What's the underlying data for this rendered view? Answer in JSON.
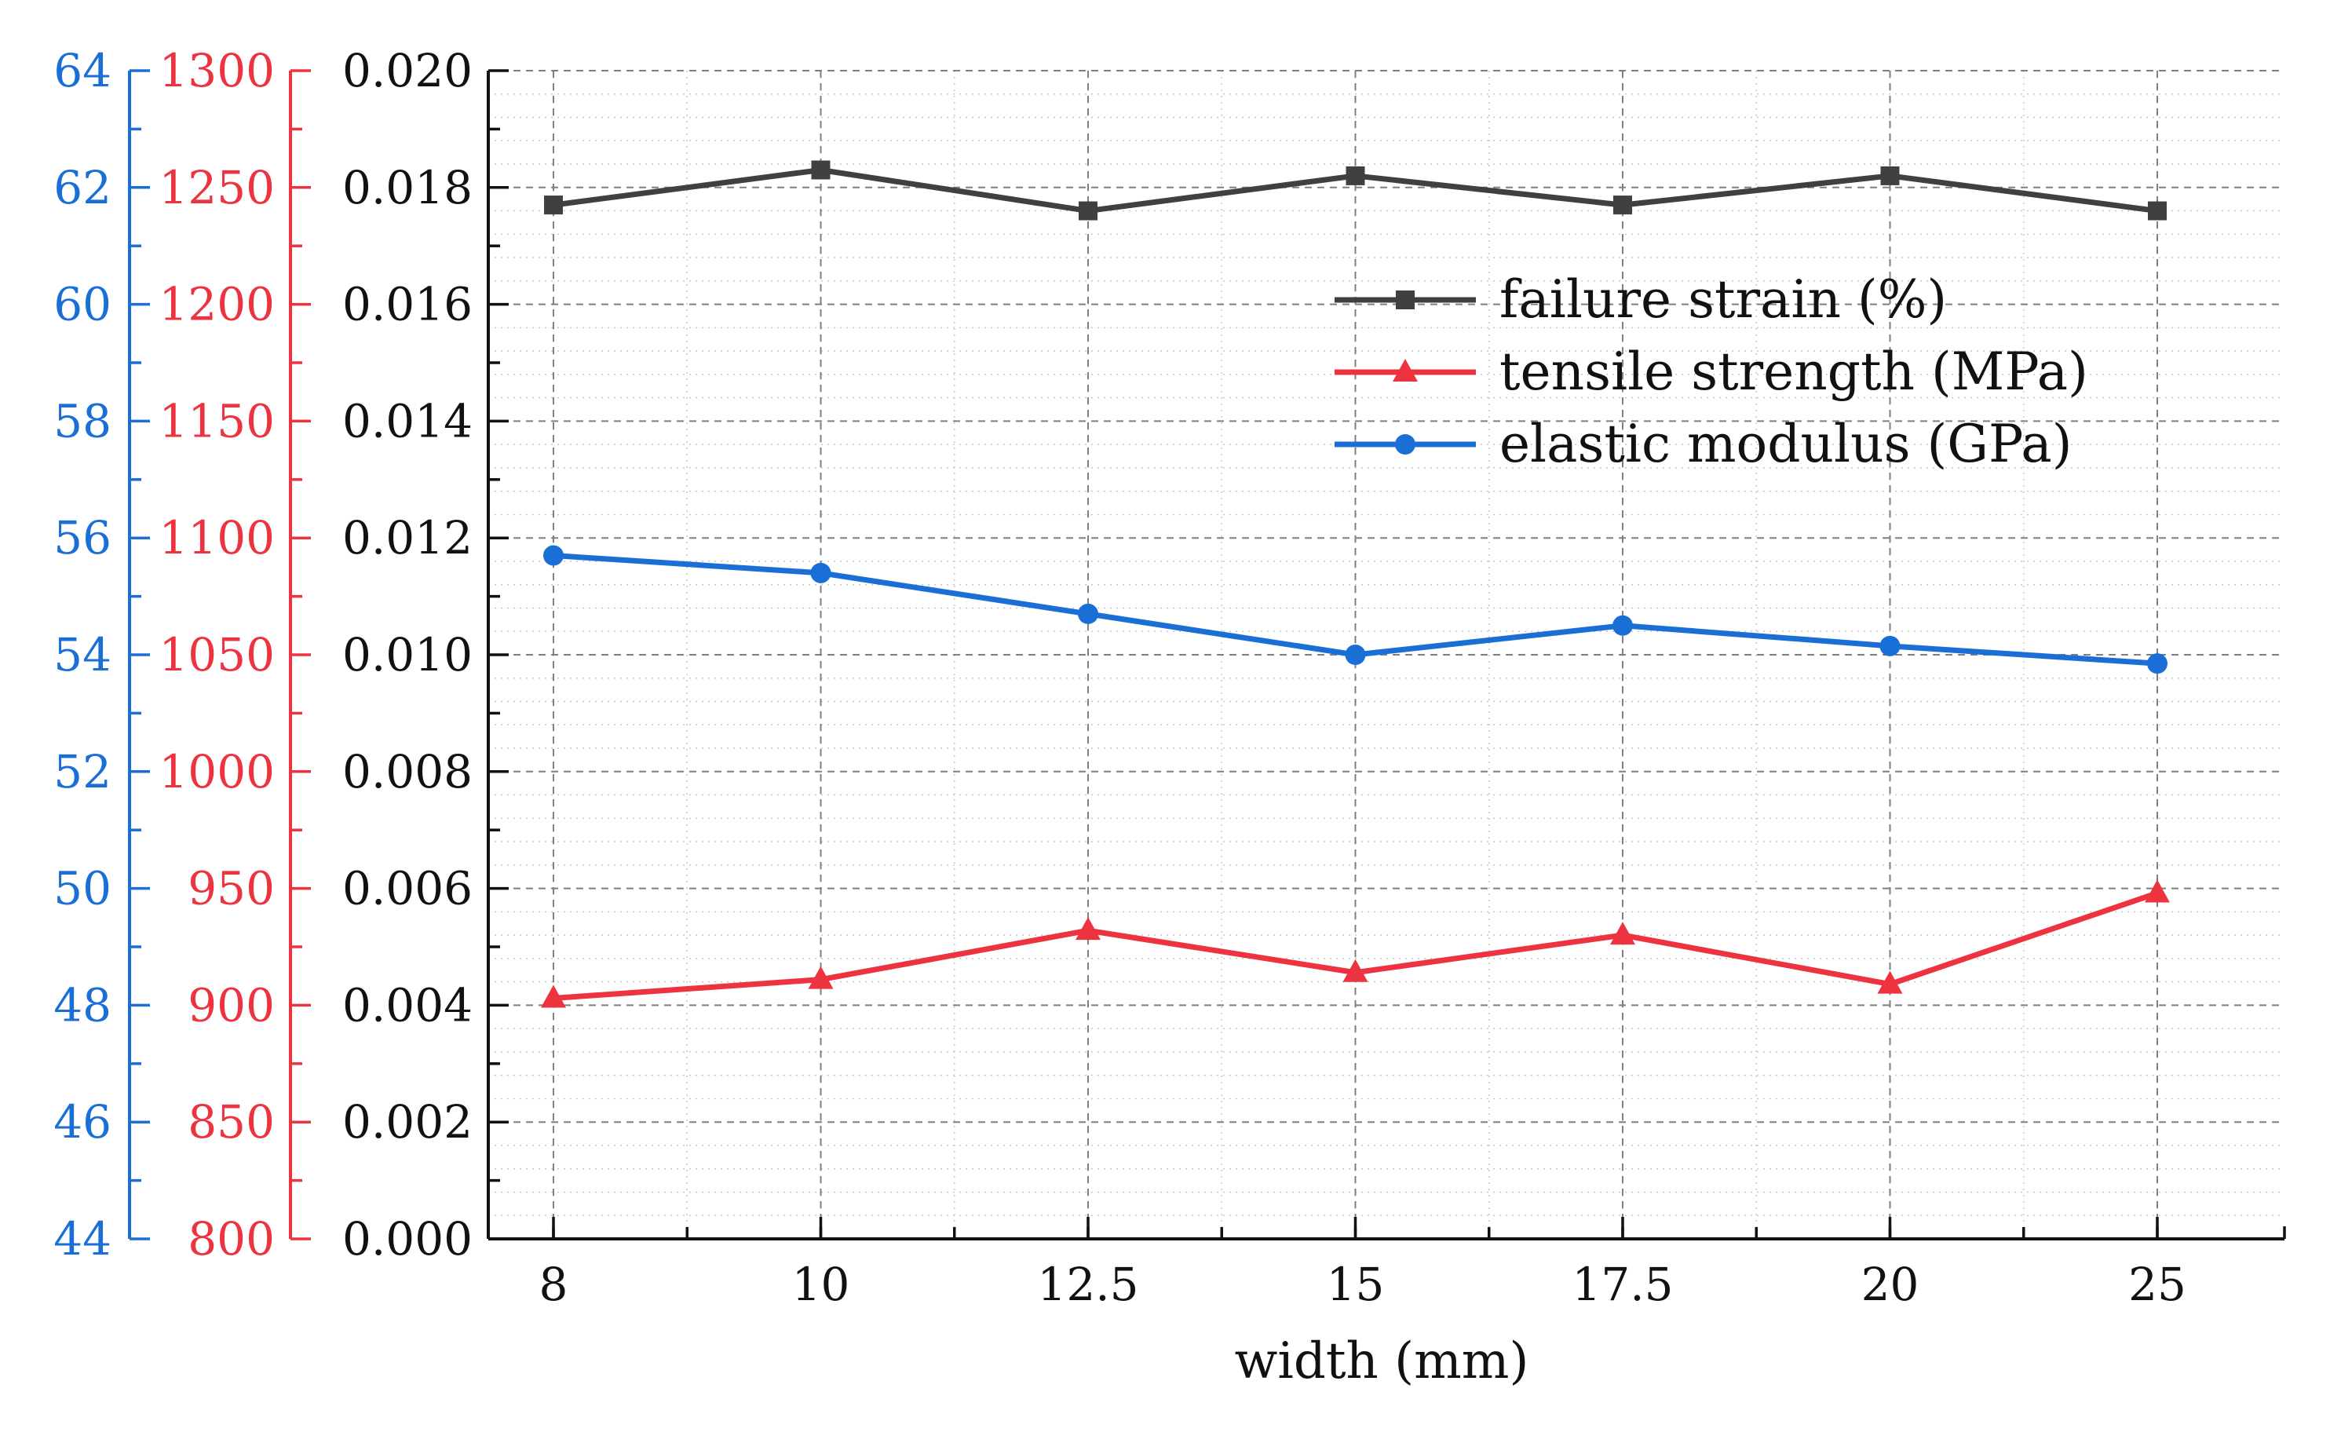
{
  "colors": {
    "strain": "#404040",
    "strength": "#ee3340",
    "modulus": "#1a6fd6",
    "grid": "#7f7f7f",
    "axis": "#111111"
  },
  "chart_data": {
    "type": "line",
    "xlabel": "width (mm)",
    "categories": [
      "8",
      "10",
      "12.5",
      "15",
      "17.5",
      "20",
      "25"
    ],
    "axes": {
      "strain": {
        "range": [
          0,
          0.02
        ],
        "ticks": [
          "0.000",
          "0.002",
          "0.004",
          "0.006",
          "0.008",
          "0.010",
          "0.012",
          "0.014",
          "0.016",
          "0.018",
          "0.020"
        ]
      },
      "strength": {
        "range": [
          800,
          1300
        ],
        "ticks": [
          "800",
          "850",
          "900",
          "950",
          "1000",
          "1050",
          "1100",
          "1150",
          "1200",
          "1250",
          "1300"
        ]
      },
      "modulus": {
        "range": [
          44,
          64
        ],
        "ticks": [
          "44",
          "46",
          "48",
          "50",
          "52",
          "54",
          "56",
          "58",
          "60",
          "62",
          "64"
        ]
      }
    },
    "grid": true,
    "legend_position": "top-right",
    "series": [
      {
        "key": "strain",
        "name": "failure strain (%)",
        "marker": "square",
        "axis": "strain",
        "values": [
          0.0177,
          0.0183,
          0.0176,
          0.0182,
          0.0177,
          0.0182,
          0.0176
        ]
      },
      {
        "key": "strength",
        "name": "tensile strength (MPa)",
        "marker": "triangle",
        "axis": "strength",
        "values": [
          903,
          911,
          932,
          914,
          930,
          909,
          948
        ]
      },
      {
        "key": "modulus",
        "name": "elastic modulus (GPa)",
        "marker": "circle",
        "axis": "modulus",
        "values": [
          55.7,
          55.4,
          54.7,
          54.0,
          54.5,
          54.15,
          53.85
        ]
      }
    ]
  }
}
